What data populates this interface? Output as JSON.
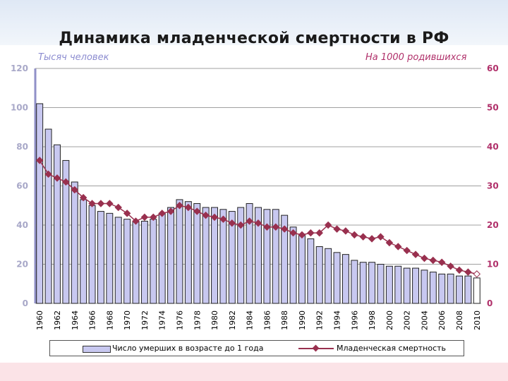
{
  "title": "Динамика младенческой смертности в РФ",
  "chart_data": {
    "type": "bar",
    "left_axis_label": "Тысяч человек",
    "right_axis_label": "На 1000 родившихся",
    "left_ylim": [
      0,
      120
    ],
    "right_ylim": [
      0,
      60
    ],
    "left_ticks": [
      "0",
      "20",
      "40",
      "60",
      "80",
      "100",
      "120"
    ],
    "right_ticks": [
      "0",
      "10",
      "20",
      "30",
      "40",
      "50",
      "60"
    ],
    "years": [
      1960,
      1961,
      1962,
      1963,
      1964,
      1965,
      1966,
      1967,
      1968,
      1969,
      1970,
      1971,
      1972,
      1973,
      1974,
      1975,
      1976,
      1977,
      1978,
      1979,
      1980,
      1981,
      1982,
      1983,
      1984,
      1985,
      1986,
      1987,
      1988,
      1989,
      1990,
      1991,
      1992,
      1993,
      1994,
      1995,
      1996,
      1997,
      1998,
      1999,
      2000,
      2001,
      2002,
      2003,
      2004,
      2005,
      2006,
      2007,
      2008,
      2009,
      2010
    ],
    "x_tick_labels": [
      "1960",
      "1962",
      "1964",
      "1966",
      "1968",
      "1970",
      "1972",
      "1974",
      "1976",
      "1978",
      "1980",
      "1982",
      "1984",
      "1986",
      "1988",
      "1990",
      "1992",
      "1994",
      "1996",
      "1998",
      "2000",
      "2002",
      "2004",
      "2006",
      "2008",
      "2010"
    ],
    "grid": true,
    "legend_position": "bottom",
    "series": [
      {
        "name": "Число умерших в возрасте до 1 года",
        "axis": "left",
        "type": "bar",
        "color": "#c8c8f0",
        "values": [
          102,
          89,
          81,
          73,
          62,
          53,
          50,
          47,
          46,
          44,
          43,
          42,
          42,
          43,
          46,
          49,
          53,
          52,
          51,
          49,
          49,
          48,
          47,
          49,
          51,
          49,
          48,
          48,
          45,
          39,
          35,
          33,
          29,
          28,
          26,
          25,
          22,
          21,
          21,
          20,
          19,
          19,
          18,
          18,
          17,
          16,
          15,
          15,
          14,
          14,
          13
        ]
      },
      {
        "name": "Младенческая смертность",
        "axis": "right",
        "type": "line",
        "color": "#99304f",
        "values": [
          36.5,
          33,
          32,
          31,
          29,
          27,
          25.5,
          25.5,
          25.5,
          24.5,
          23,
          21,
          22,
          22,
          23,
          23.5,
          25,
          24.5,
          23.5,
          22.5,
          22,
          21.5,
          20.5,
          20,
          21,
          20.5,
          19.5,
          19.5,
          19,
          18,
          17.5,
          18,
          18,
          20,
          19,
          18.5,
          17.5,
          17,
          16.5,
          17,
          15.5,
          14.5,
          13.5,
          12.5,
          11.5,
          11,
          10.5,
          9.5,
          8.5,
          8,
          7.5
        ]
      }
    ]
  }
}
